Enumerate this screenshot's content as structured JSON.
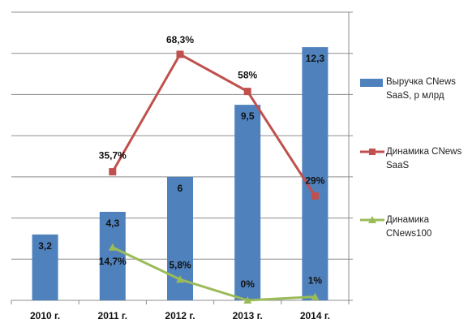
{
  "chart_data": {
    "type": "bar",
    "categories": [
      "2010 г.",
      "2011 г.",
      "2012 г.",
      "2013 г.",
      "2014 г."
    ],
    "bar_series": {
      "name": "Выручка CNews SaaS, р млрд",
      "values": [
        3.2,
        4.3,
        6,
        9.5,
        12.3
      ],
      "labels": [
        "3,2",
        "4,3",
        "6",
        "9,5",
        "12,3"
      ],
      "color": "#4F81BD"
    },
    "line_series": [
      {
        "name": "Динамика CNews SaaS",
        "values": [
          null,
          35.7,
          68.3,
          58,
          29
        ],
        "labels": [
          "",
          "35,7%",
          "68,3%",
          "58%",
          "29%"
        ],
        "color": "#C0504D"
      },
      {
        "name": "Динамика CNews100",
        "values": [
          null,
          14.7,
          5.8,
          0,
          1
        ],
        "labels": [
          "",
          "14,7%",
          "5,8%",
          "0%",
          "1%"
        ],
        "color": "#9BBB59"
      }
    ],
    "y_left_range": [
      0,
      14
    ],
    "y_right_range": [
      0,
      80
    ],
    "grid": true,
    "legend_position": "right"
  }
}
